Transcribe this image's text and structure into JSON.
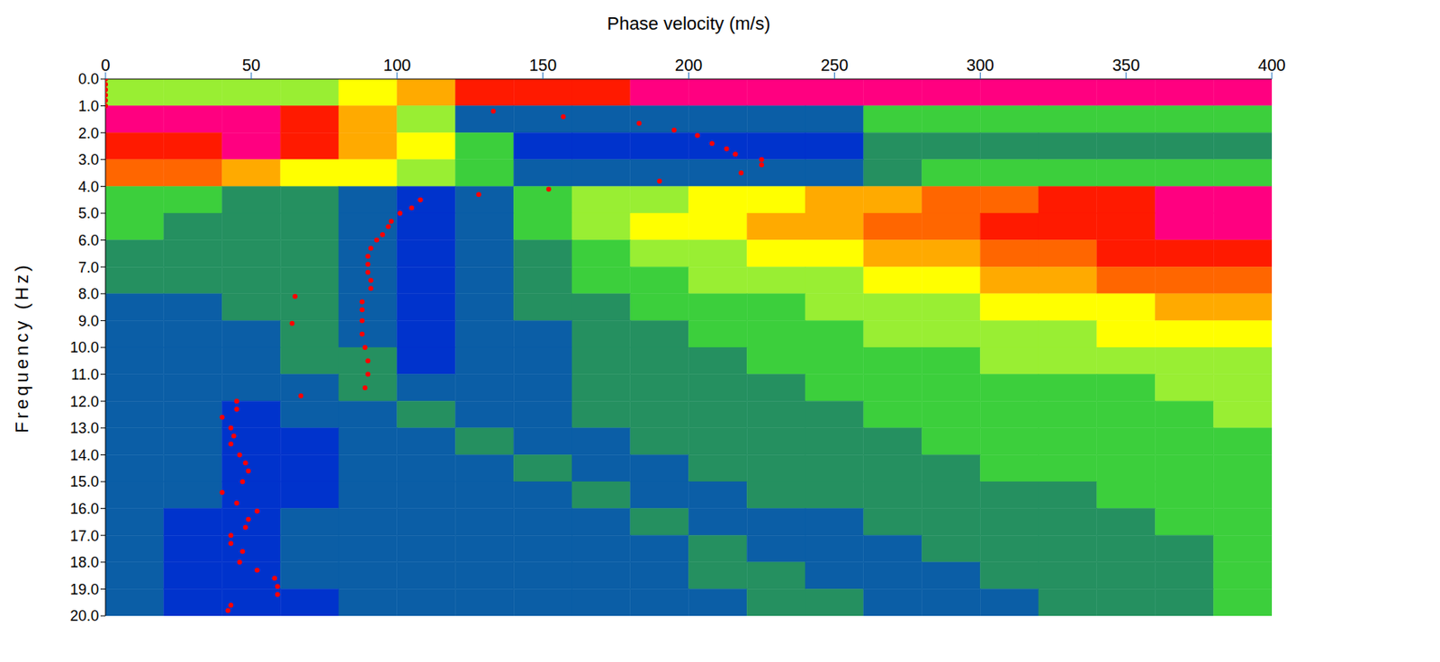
{
  "chart_data": {
    "type": "heatmap",
    "xlabel": "Phase velocity (m/s)",
    "ylabel": "Frequency (Hz)",
    "xlim": [
      0,
      400
    ],
    "xticks": [
      0,
      50,
      100,
      150,
      200,
      250,
      300,
      350,
      400
    ],
    "ylim": [
      0,
      20
    ],
    "yticks": [
      {
        "value": 0,
        "label": "0.0"
      },
      {
        "value": 1,
        "label": "1.0"
      },
      {
        "value": 2,
        "label": "2.0"
      },
      {
        "value": 3,
        "label": "3.0"
      },
      {
        "value": 4,
        "label": "4.0"
      },
      {
        "value": 5,
        "label": "5.0"
      },
      {
        "value": 6,
        "label": "6.0"
      },
      {
        "value": 7,
        "label": "7.0"
      },
      {
        "value": 8,
        "label": "8.0"
      },
      {
        "value": 9,
        "label": "9.0"
      },
      {
        "value": 10,
        "label": "10.0"
      },
      {
        "value": 11,
        "label": "11.0"
      },
      {
        "value": 12,
        "label": "12.0"
      },
      {
        "value": 13,
        "label": "13.0"
      },
      {
        "value": 14,
        "label": "14.0"
      },
      {
        "value": 15,
        "label": "15.0"
      },
      {
        "value": 16,
        "label": "16.0"
      },
      {
        "value": 17,
        "label": "17.0"
      },
      {
        "value": 18,
        "label": "18.0"
      },
      {
        "value": 19,
        "label": "19.0"
      },
      {
        "value": 20,
        "label": "20.0"
      }
    ],
    "zlim": [
      0,
      10
    ],
    "cells": {
      "x_edges": [
        0,
        20,
        40,
        60,
        80,
        100,
        120,
        140,
        160,
        180,
        200,
        220,
        240,
        260,
        280,
        300,
        320,
        340,
        360,
        380,
        400
      ],
      "y_edges": [
        0,
        1,
        2,
        3,
        4,
        5,
        6,
        7,
        8,
        9,
        10,
        11,
        12,
        13,
        14,
        15,
        16,
        17,
        18,
        19,
        20
      ],
      "values": [
        [
          4,
          4,
          4,
          4,
          5,
          6,
          8,
          8,
          8,
          9,
          9,
          9,
          9,
          9,
          9,
          9,
          9,
          9,
          9,
          9
        ],
        [
          9,
          9,
          9,
          8,
          6,
          4,
          1,
          1,
          1,
          1,
          1,
          1,
          1,
          3,
          3,
          3,
          3,
          3,
          3,
          3
        ],
        [
          8,
          8,
          9,
          8,
          6,
          5,
          3,
          0,
          0,
          0,
          0,
          0,
          0,
          2,
          2,
          2,
          2,
          2,
          2,
          2
        ],
        [
          7,
          7,
          6,
          5,
          5,
          4,
          3,
          1,
          1,
          1,
          1,
          1,
          1,
          2,
          3,
          3,
          3,
          3,
          3,
          3
        ],
        [
          3,
          3,
          2,
          2,
          1,
          0,
          1,
          3,
          4,
          4,
          5,
          5,
          6,
          6,
          7,
          7,
          8,
          8,
          9,
          9
        ],
        [
          3,
          2,
          2,
          2,
          1,
          0,
          1,
          3,
          4,
          5,
          5,
          6,
          6,
          7,
          7,
          8,
          8,
          8,
          9,
          9
        ],
        [
          2,
          2,
          2,
          2,
          1,
          0,
          1,
          2,
          3,
          4,
          4,
          5,
          5,
          6,
          6,
          7,
          7,
          8,
          8,
          8
        ],
        [
          2,
          2,
          2,
          2,
          1,
          0,
          1,
          2,
          3,
          3,
          4,
          4,
          4,
          5,
          5,
          6,
          6,
          7,
          7,
          7
        ],
        [
          1,
          1,
          2,
          2,
          1,
          0,
          1,
          2,
          2,
          3,
          3,
          3,
          4,
          4,
          4,
          5,
          5,
          5,
          6,
          6
        ],
        [
          1,
          1,
          1,
          2,
          1,
          0,
          1,
          1,
          2,
          2,
          3,
          3,
          3,
          4,
          4,
          4,
          4,
          5,
          5,
          5
        ],
        [
          1,
          1,
          1,
          2,
          2,
          0,
          1,
          1,
          2,
          2,
          2,
          3,
          3,
          3,
          3,
          4,
          4,
          4,
          4,
          4
        ],
        [
          1,
          1,
          1,
          1,
          2,
          1,
          1,
          1,
          2,
          2,
          2,
          2,
          3,
          3,
          3,
          3,
          3,
          3,
          4,
          4
        ],
        [
          1,
          1,
          0,
          1,
          1,
          2,
          1,
          1,
          2,
          2,
          2,
          2,
          2,
          3,
          3,
          3,
          3,
          3,
          3,
          4
        ],
        [
          1,
          1,
          0,
          0,
          1,
          1,
          2,
          1,
          1,
          2,
          2,
          2,
          2,
          2,
          3,
          3,
          3,
          3,
          3,
          3
        ],
        [
          1,
          1,
          0,
          0,
          1,
          1,
          1,
          2,
          1,
          1,
          2,
          2,
          2,
          2,
          2,
          3,
          3,
          3,
          3,
          3
        ],
        [
          1,
          1,
          0,
          0,
          1,
          1,
          1,
          1,
          2,
          1,
          1,
          2,
          2,
          2,
          2,
          2,
          2,
          3,
          3,
          3
        ],
        [
          1,
          0,
          0,
          1,
          1,
          1,
          1,
          1,
          1,
          2,
          1,
          1,
          1,
          2,
          2,
          2,
          2,
          2,
          3,
          3
        ],
        [
          1,
          0,
          0,
          1,
          1,
          1,
          1,
          1,
          1,
          1,
          2,
          1,
          1,
          1,
          2,
          2,
          2,
          2,
          2,
          3
        ],
        [
          1,
          0,
          0,
          1,
          1,
          1,
          1,
          1,
          1,
          1,
          2,
          2,
          1,
          1,
          1,
          2,
          2,
          2,
          2,
          3
        ],
        [
          1,
          0,
          0,
          0,
          1,
          1,
          1,
          1,
          1,
          1,
          1,
          2,
          2,
          1,
          1,
          1,
          2,
          2,
          2,
          3
        ]
      ]
    },
    "series": [
      {
        "type": "scatter",
        "color": "#ff0000",
        "marker": "circle",
        "x": [
          0,
          0,
          0,
          0,
          0,
          0,
          133,
          157,
          183,
          195,
          203,
          208,
          213,
          216,
          225,
          225,
          218,
          190,
          152,
          128,
          108,
          105,
          101,
          98,
          97,
          95,
          93,
          91,
          90,
          90,
          90,
          91,
          91,
          88,
          88,
          88,
          88,
          89,
          90,
          90,
          89,
          65,
          64,
          67,
          45,
          45,
          40,
          43,
          44,
          43,
          46,
          48,
          49,
          47,
          40,
          45,
          52,
          49,
          48,
          43,
          43,
          47,
          46,
          52,
          58,
          59,
          59,
          43,
          42
        ],
        "values": [
          0,
          0.2,
          0.4,
          0.6,
          0.8,
          1.0,
          1.2,
          1.4,
          1.65,
          1.9,
          2.1,
          2.4,
          2.6,
          2.8,
          3.0,
          3.2,
          3.5,
          3.8,
          4.1,
          4.3,
          4.5,
          4.8,
          5.0,
          5.3,
          5.5,
          5.8,
          6.0,
          6.3,
          6.6,
          6.9,
          7.2,
          7.5,
          7.8,
          8.3,
          8.6,
          9.0,
          9.5,
          10.0,
          10.5,
          11.0,
          11.5,
          8.1,
          9.1,
          11.8,
          12.0,
          12.3,
          12.6,
          13.0,
          13.3,
          13.6,
          14.0,
          14.3,
          14.6,
          15.0,
          15.4,
          15.8,
          16.1,
          16.4,
          16.7,
          17.0,
          17.3,
          17.6,
          18.0,
          18.3,
          18.6,
          18.9,
          19.2,
          19.6,
          19.8
        ]
      }
    ]
  }
}
